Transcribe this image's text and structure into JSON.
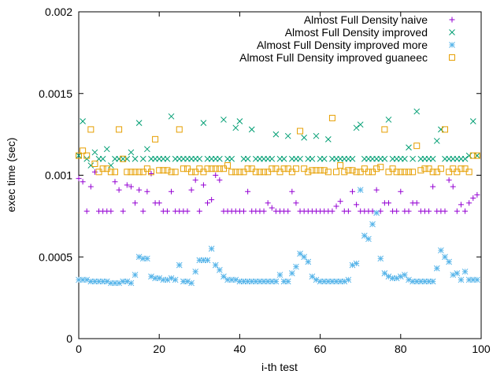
{
  "chart_data": {
    "type": "scatter",
    "title": "",
    "xlabel": "i-th test",
    "ylabel": "exec time (sec)",
    "xlim": [
      0,
      100
    ],
    "ylim": [
      0,
      0.002
    ],
    "x_ticks": [
      0,
      20,
      40,
      60,
      80,
      100
    ],
    "x_tick_labels": [
      "0",
      "20",
      "40",
      "60",
      "80",
      "100"
    ],
    "y_ticks": [
      0,
      0.0005,
      0.001,
      0.0015,
      0.002
    ],
    "y_tick_labels": [
      "0",
      "0.0005",
      "0.001",
      "0.0015",
      "0.002"
    ],
    "grid": false,
    "legend_position": "top-right",
    "series": [
      {
        "name": "Almost Full Density naive",
        "marker": "plus",
        "color": "#9400d3",
        "x": [
          0,
          1,
          2,
          3,
          4,
          5,
          6,
          7,
          8,
          9,
          10,
          11,
          12,
          13,
          14,
          15,
          16,
          17,
          18,
          19,
          20,
          21,
          22,
          23,
          24,
          25,
          26,
          27,
          28,
          29,
          30,
          31,
          32,
          33,
          34,
          35,
          36,
          37,
          38,
          39,
          40,
          41,
          42,
          43,
          44,
          45,
          46,
          47,
          48,
          49,
          50,
          51,
          52,
          53,
          54,
          55,
          56,
          57,
          58,
          59,
          60,
          61,
          62,
          63,
          64,
          65,
          66,
          67,
          68,
          69,
          70,
          71,
          72,
          73,
          74,
          75,
          76,
          77,
          78,
          79,
          80,
          81,
          82,
          83,
          84,
          85,
          86,
          87,
          88,
          89,
          90,
          91,
          92,
          93,
          94,
          95,
          96,
          97,
          98,
          99
        ],
        "y": [
          0.00098,
          0.00096,
          0.00078,
          0.00093,
          0.00102,
          0.00078,
          0.00078,
          0.00078,
          0.00078,
          0.00096,
          0.00091,
          0.00078,
          0.00094,
          0.00093,
          0.00083,
          0.00091,
          0.00078,
          0.0009,
          0.00101,
          0.00083,
          0.00083,
          0.00078,
          0.00078,
          0.0009,
          0.00078,
          0.00078,
          0.00078,
          0.00078,
          0.00091,
          0.00097,
          0.00078,
          0.00094,
          0.00083,
          0.00085,
          0.001,
          0.00097,
          0.00078,
          0.00078,
          0.00078,
          0.00078,
          0.00078,
          0.00078,
          0.0009,
          0.00078,
          0.00078,
          0.00078,
          0.00078,
          0.00083,
          0.0008,
          0.00078,
          0.00078,
          0.00078,
          0.00078,
          0.0009,
          0.00083,
          0.00078,
          0.00078,
          0.00078,
          0.00078,
          0.00078,
          0.00078,
          0.00078,
          0.00078,
          0.00078,
          0.00081,
          0.00084,
          0.00078,
          0.00078,
          0.0009,
          0.00082,
          0.00078,
          0.00078,
          0.00078,
          0.00078,
          0.00091,
          0.00078,
          0.00083,
          0.00083,
          0.00078,
          0.00078,
          0.0009,
          0.00078,
          0.00078,
          0.00083,
          0.00083,
          0.00078,
          0.00078,
          0.00078,
          0.00093,
          0.00078,
          0.00078,
          0.00078,
          0.00097,
          0.00093,
          0.00078,
          0.00082,
          0.00078,
          0.00083,
          0.00086,
          0.00088
        ]
      },
      {
        "name": "Almost Full Density improved",
        "marker": "x",
        "color": "#009e73",
        "x": [
          0,
          1,
          2,
          3,
          4,
          5,
          6,
          7,
          8,
          9,
          10,
          11,
          12,
          13,
          14,
          15,
          16,
          17,
          18,
          19,
          20,
          21,
          22,
          23,
          24,
          25,
          26,
          27,
          28,
          29,
          30,
          31,
          32,
          33,
          34,
          35,
          36,
          37,
          38,
          39,
          40,
          41,
          42,
          43,
          44,
          45,
          46,
          47,
          48,
          49,
          50,
          51,
          52,
          53,
          54,
          55,
          56,
          57,
          58,
          59,
          60,
          61,
          62,
          63,
          64,
          65,
          66,
          67,
          68,
          69,
          70,
          71,
          72,
          73,
          74,
          75,
          76,
          77,
          78,
          79,
          80,
          81,
          82,
          83,
          84,
          85,
          86,
          87,
          88,
          89,
          90,
          91,
          92,
          93,
          94,
          95,
          96,
          97,
          98,
          99
        ],
        "y": [
          0.00112,
          0.00133,
          0.0011,
          0.00106,
          0.00114,
          0.0011,
          0.0011,
          0.00116,
          0.00106,
          0.0011,
          0.0011,
          0.0011,
          0.0011,
          0.00114,
          0.0011,
          0.00132,
          0.0011,
          0.00116,
          0.0011,
          0.0011,
          0.0011,
          0.0011,
          0.0011,
          0.00136,
          0.0011,
          0.0011,
          0.0011,
          0.0011,
          0.0011,
          0.0011,
          0.0011,
          0.00132,
          0.0011,
          0.0011,
          0.0011,
          0.0011,
          0.00134,
          0.0011,
          0.0011,
          0.00129,
          0.00133,
          0.0011,
          0.0011,
          0.00128,
          0.0011,
          0.0011,
          0.0011,
          0.0011,
          0.0011,
          0.00125,
          0.0011,
          0.0011,
          0.00124,
          0.0011,
          0.0011,
          0.0011,
          0.00123,
          0.0011,
          0.0011,
          0.00124,
          0.0011,
          0.0011,
          0.00122,
          0.0011,
          0.0011,
          0.0011,
          0.0011,
          0.0011,
          0.0011,
          0.00129,
          0.00131,
          0.0011,
          0.0011,
          0.0011,
          0.0011,
          0.0011,
          0.0011,
          0.00134,
          0.0011,
          0.0011,
          0.0011,
          0.0011,
          0.00117,
          0.0011,
          0.00139,
          0.0011,
          0.0011,
          0.0011,
          0.0011,
          0.00121,
          0.00128,
          0.0011,
          0.0011,
          0.0011,
          0.0011,
          0.0011,
          0.0011,
          0.00112,
          0.00133,
          0.00112
        ]
      },
      {
        "name": "Almost Full Density improved more",
        "marker": "star",
        "color": "#56b4e9",
        "x": [
          0,
          1,
          2,
          3,
          4,
          5,
          6,
          7,
          8,
          9,
          10,
          11,
          12,
          13,
          14,
          15,
          16,
          17,
          18,
          19,
          20,
          21,
          22,
          23,
          24,
          25,
          26,
          27,
          28,
          29,
          30,
          31,
          32,
          33,
          34,
          35,
          36,
          37,
          38,
          39,
          40,
          41,
          42,
          43,
          44,
          45,
          46,
          47,
          48,
          49,
          50,
          51,
          52,
          53,
          54,
          55,
          56,
          57,
          58,
          59,
          60,
          61,
          62,
          63,
          64,
          65,
          66,
          67,
          68,
          69,
          70,
          71,
          72,
          73,
          74,
          75,
          76,
          77,
          78,
          79,
          80,
          81,
          82,
          83,
          84,
          85,
          86,
          87,
          88,
          89,
          90,
          91,
          92,
          93,
          94,
          95,
          96,
          97,
          98,
          99
        ],
        "y": [
          0.00036,
          0.00036,
          0.00036,
          0.00035,
          0.00035,
          0.00035,
          0.00035,
          0.00035,
          0.00034,
          0.00034,
          0.00034,
          0.00035,
          0.00035,
          0.00034,
          0.00039,
          0.0005,
          0.00049,
          0.00049,
          0.00038,
          0.00037,
          0.00037,
          0.00036,
          0.00036,
          0.00037,
          0.00036,
          0.00045,
          0.00035,
          0.00035,
          0.00034,
          0.00041,
          0.00048,
          0.00048,
          0.00048,
          0.00055,
          0.00045,
          0.00042,
          0.00038,
          0.00036,
          0.00036,
          0.00036,
          0.00035,
          0.00035,
          0.00035,
          0.00035,
          0.00035,
          0.00035,
          0.00035,
          0.00035,
          0.00035,
          0.00035,
          0.00039,
          0.00035,
          0.00035,
          0.0004,
          0.00044,
          0.00052,
          0.0005,
          0.00047,
          0.00038,
          0.00036,
          0.00035,
          0.00035,
          0.00035,
          0.00035,
          0.00035,
          0.00035,
          0.00035,
          0.00036,
          0.00045,
          0.00046,
          0.00091,
          0.00063,
          0.00061,
          0.0007,
          0.00077,
          0.00049,
          0.0004,
          0.00038,
          0.00037,
          0.00037,
          0.00038,
          0.00039,
          0.00036,
          0.00035,
          0.00035,
          0.00035,
          0.00035,
          0.00035,
          0.00035,
          0.00043,
          0.00054,
          0.0005,
          0.00047,
          0.00039,
          0.0004,
          0.00036,
          0.00041,
          0.00036,
          0.00036,
          0.00036
        ]
      },
      {
        "name": "Almost Full Density improved guaneec",
        "marker": "square",
        "color": "#e69f00",
        "x": [
          0,
          1,
          2,
          3,
          4,
          5,
          6,
          7,
          8,
          9,
          10,
          11,
          12,
          13,
          14,
          15,
          16,
          17,
          18,
          19,
          20,
          21,
          22,
          23,
          24,
          25,
          26,
          27,
          28,
          29,
          30,
          31,
          32,
          33,
          34,
          35,
          36,
          37,
          38,
          39,
          40,
          41,
          42,
          43,
          44,
          45,
          46,
          47,
          48,
          49,
          50,
          51,
          52,
          53,
          54,
          55,
          56,
          57,
          58,
          59,
          60,
          61,
          62,
          63,
          64,
          65,
          66,
          67,
          68,
          69,
          70,
          71,
          72,
          73,
          74,
          75,
          76,
          77,
          78,
          79,
          80,
          81,
          82,
          83,
          84,
          85,
          86,
          87,
          88,
          89,
          90,
          91,
          92,
          93,
          94,
          95,
          96,
          97,
          98,
          99
        ],
        "y": [
          0.00112,
          0.00115,
          0.00112,
          0.00128,
          0.00107,
          0.00102,
          0.00104,
          0.00104,
          0.00102,
          0.00102,
          0.00128,
          0.0011,
          0.00102,
          0.00102,
          0.00102,
          0.00102,
          0.00102,
          0.00104,
          0.00102,
          0.00122,
          0.00103,
          0.00103,
          0.00103,
          0.00102,
          0.00102,
          0.00128,
          0.00104,
          0.00104,
          0.00102,
          0.00102,
          0.00104,
          0.00102,
          0.00104,
          0.00104,
          0.00104,
          0.00104,
          0.00104,
          0.00106,
          0.00102,
          0.00102,
          0.00102,
          0.00102,
          0.00104,
          0.00104,
          0.00102,
          0.00102,
          0.00102,
          0.00102,
          0.00104,
          0.00104,
          0.00102,
          0.00104,
          0.00104,
          0.00102,
          0.00104,
          0.00127,
          0.00104,
          0.00102,
          0.00103,
          0.00103,
          0.00103,
          0.00103,
          0.00102,
          0.00135,
          0.00102,
          0.00106,
          0.00102,
          0.00103,
          0.00103,
          0.00102,
          0.00102,
          0.00104,
          0.00102,
          0.00102,
          0.00104,
          0.00105,
          0.00128,
          0.00102,
          0.00104,
          0.00102,
          0.00102,
          0.00102,
          0.00102,
          0.00102,
          0.00118,
          0.00103,
          0.00104,
          0.00104,
          0.00102,
          0.00102,
          0.00104,
          0.00128,
          0.00102,
          0.00104,
          0.00102,
          0.00104,
          0.00104,
          0.00102,
          0.00112,
          0.00112
        ]
      }
    ]
  }
}
